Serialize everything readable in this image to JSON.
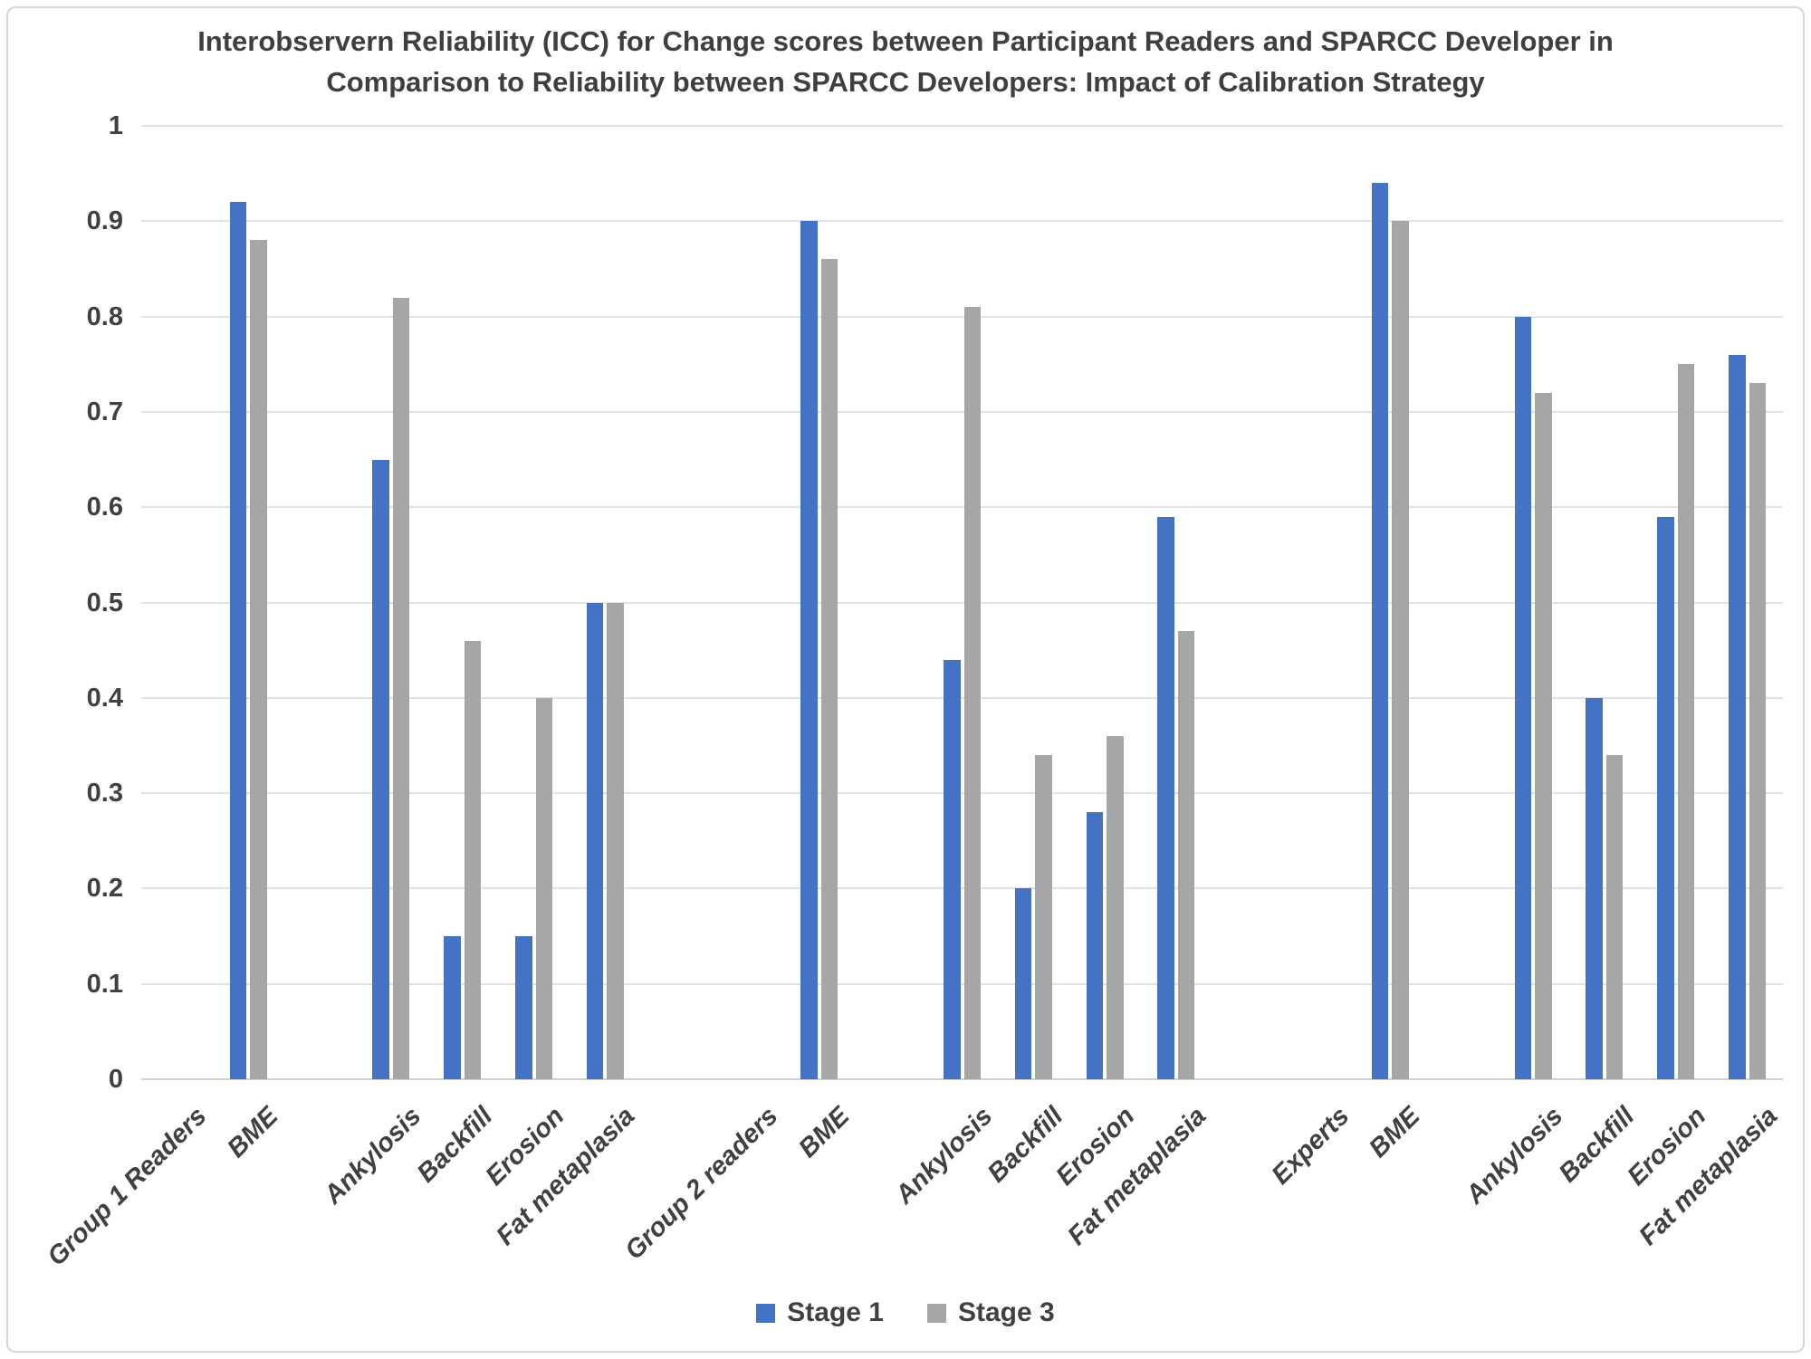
{
  "colors": {
    "stage1": "#4472C4",
    "stage3": "#A6A6A6",
    "text": "#404040",
    "gridline": "#E2E2E2",
    "axisline": "#D0D0D0",
    "border": "#D6D6D6"
  },
  "chart_data": {
    "type": "bar",
    "title_line1": "Interobservern Reliability (ICC) for Change scores between Participant Readers and SPARCC Developer in",
    "title_line2": "Comparison to Reliability between SPARCC Developers: Impact of Calibration Strategy",
    "xlabel": "",
    "ylabel": "",
    "ylim": [
      0,
      1
    ],
    "ytick_step": 0.1,
    "yticks": [
      "1",
      "0.9",
      "0.8",
      "0.7",
      "0.6",
      "0.5",
      "0.4",
      "0.3",
      "0.2",
      "0.1",
      "0"
    ],
    "grid": true,
    "legend_position": "bottom-center",
    "categories": [
      "Group 1 Readers",
      "BME",
      "",
      "Ankylosis",
      "Backfill",
      "Erosion",
      "Fat metaplasia",
      "",
      "Group 2 readers",
      "BME",
      "",
      "Ankylosis",
      "Backfill",
      "Erosion",
      "Fat metaplasia",
      "",
      "Experts",
      "BME",
      "",
      "Ankylosis",
      "Backfill",
      "Erosion",
      "Fat metaplasia"
    ],
    "series": [
      {
        "name": "Stage 1",
        "color": "#4472C4",
        "values": [
          null,
          0.92,
          null,
          0.65,
          0.15,
          0.15,
          0.5,
          null,
          null,
          0.9,
          null,
          0.44,
          0.2,
          0.28,
          0.59,
          null,
          null,
          0.94,
          null,
          0.8,
          0.4,
          0.59,
          0.76
        ]
      },
      {
        "name": "Stage 3",
        "color": "#A6A6A6",
        "values": [
          null,
          0.88,
          null,
          0.82,
          0.46,
          0.4,
          0.5,
          null,
          null,
          0.86,
          null,
          0.81,
          0.34,
          0.36,
          0.47,
          null,
          null,
          0.9,
          null,
          0.72,
          0.34,
          0.75,
          0.73
        ]
      }
    ]
  }
}
